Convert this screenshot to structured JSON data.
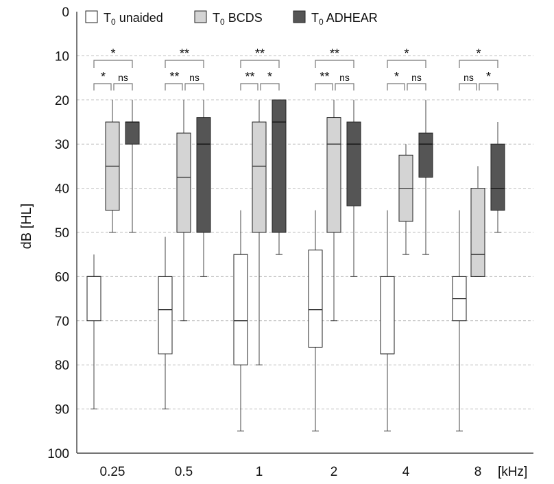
{
  "chart_data": {
    "type": "box",
    "ylabel": "dB [HL]",
    "xunit": "[kHz]",
    "ylim": [
      0,
      100
    ],
    "y_inverted": true,
    "y_ticks": [
      0,
      10,
      20,
      30,
      40,
      50,
      60,
      70,
      80,
      90,
      100
    ],
    "grid": "horizontal dashed",
    "legend_position": "top",
    "categories": [
      "0.25",
      "0.5",
      "1",
      "2",
      "4",
      "8"
    ],
    "series": [
      {
        "legend_prefix": "T",
        "legend_sub": "0",
        "legend_suffix": " unaided",
        "color": "#ffffff",
        "boxes": [
          {
            "whisker_low": 55,
            "q1": 60,
            "median": 60,
            "q3": 70,
            "whisker_high": 90
          },
          {
            "whisker_low": 51,
            "q1": 60,
            "median": 67.5,
            "q3": 77.5,
            "whisker_high": 90
          },
          {
            "whisker_low": 45,
            "q1": 55,
            "median": 70,
            "q3": 80,
            "whisker_high": 95
          },
          {
            "whisker_low": 45,
            "q1": 54,
            "median": 67.5,
            "q3": 76,
            "whisker_high": 95
          },
          {
            "whisker_low": 45,
            "q1": 60,
            "median": 77.5,
            "q3": 77.5,
            "whisker_high": 95
          },
          {
            "whisker_low": 45,
            "q1": 60,
            "median": 65,
            "q3": 70,
            "whisker_high": 95
          }
        ]
      },
      {
        "legend_prefix": "T",
        "legend_sub": "0",
        "legend_suffix": " BCDS",
        "color": "#d4d4d4",
        "boxes": [
          {
            "whisker_low": 20,
            "q1": 25,
            "median": 35,
            "q3": 45,
            "whisker_high": 50
          },
          {
            "whisker_low": 20,
            "q1": 27.5,
            "median": 37.5,
            "q3": 50,
            "whisker_high": 70
          },
          {
            "whisker_low": 20,
            "q1": 25,
            "median": 35,
            "q3": 50,
            "whisker_high": 80
          },
          {
            "whisker_low": 20,
            "q1": 24,
            "median": 30,
            "q3": 50,
            "whisker_high": 70
          },
          {
            "whisker_low": 30,
            "q1": 32.5,
            "median": 40,
            "q3": 47.5,
            "whisker_high": 55
          },
          {
            "whisker_low": 35,
            "q1": 40,
            "median": 55,
            "q3": 60,
            "whisker_high": 60
          }
        ]
      },
      {
        "legend_prefix": "T",
        "legend_sub": "0",
        "legend_suffix": " ADHEAR",
        "color": "#555555",
        "boxes": [
          {
            "whisker_low": 20,
            "q1": 25,
            "median": 25,
            "q3": 30,
            "whisker_high": 50
          },
          {
            "whisker_low": 20,
            "q1": 24,
            "median": 30,
            "q3": 50,
            "whisker_high": 60
          },
          {
            "whisker_low": 20,
            "q1": 20,
            "median": 25,
            "q3": 50,
            "whisker_high": 55
          },
          {
            "whisker_low": 20,
            "q1": 25,
            "median": 30,
            "q3": 44,
            "whisker_high": 60
          },
          {
            "whisker_low": 20,
            "q1": 27.5,
            "median": 30,
            "q3": 37.5,
            "whisker_high": 55
          },
          {
            "whisker_low": 25,
            "q1": 30,
            "median": 40,
            "q3": 45,
            "whisker_high": 50
          }
        ]
      }
    ],
    "significance": [
      {
        "outer": "*",
        "left": "*",
        "right": "ns"
      },
      {
        "outer": "**",
        "left": "**",
        "right": "ns"
      },
      {
        "outer": "**",
        "left": "**",
        "right": "*"
      },
      {
        "outer": "**",
        "left": "**",
        "right": "ns"
      },
      {
        "outer": "*",
        "left": "*",
        "right": "ns"
      },
      {
        "outer": "*",
        "left": "ns",
        "right": "*"
      }
    ]
  }
}
